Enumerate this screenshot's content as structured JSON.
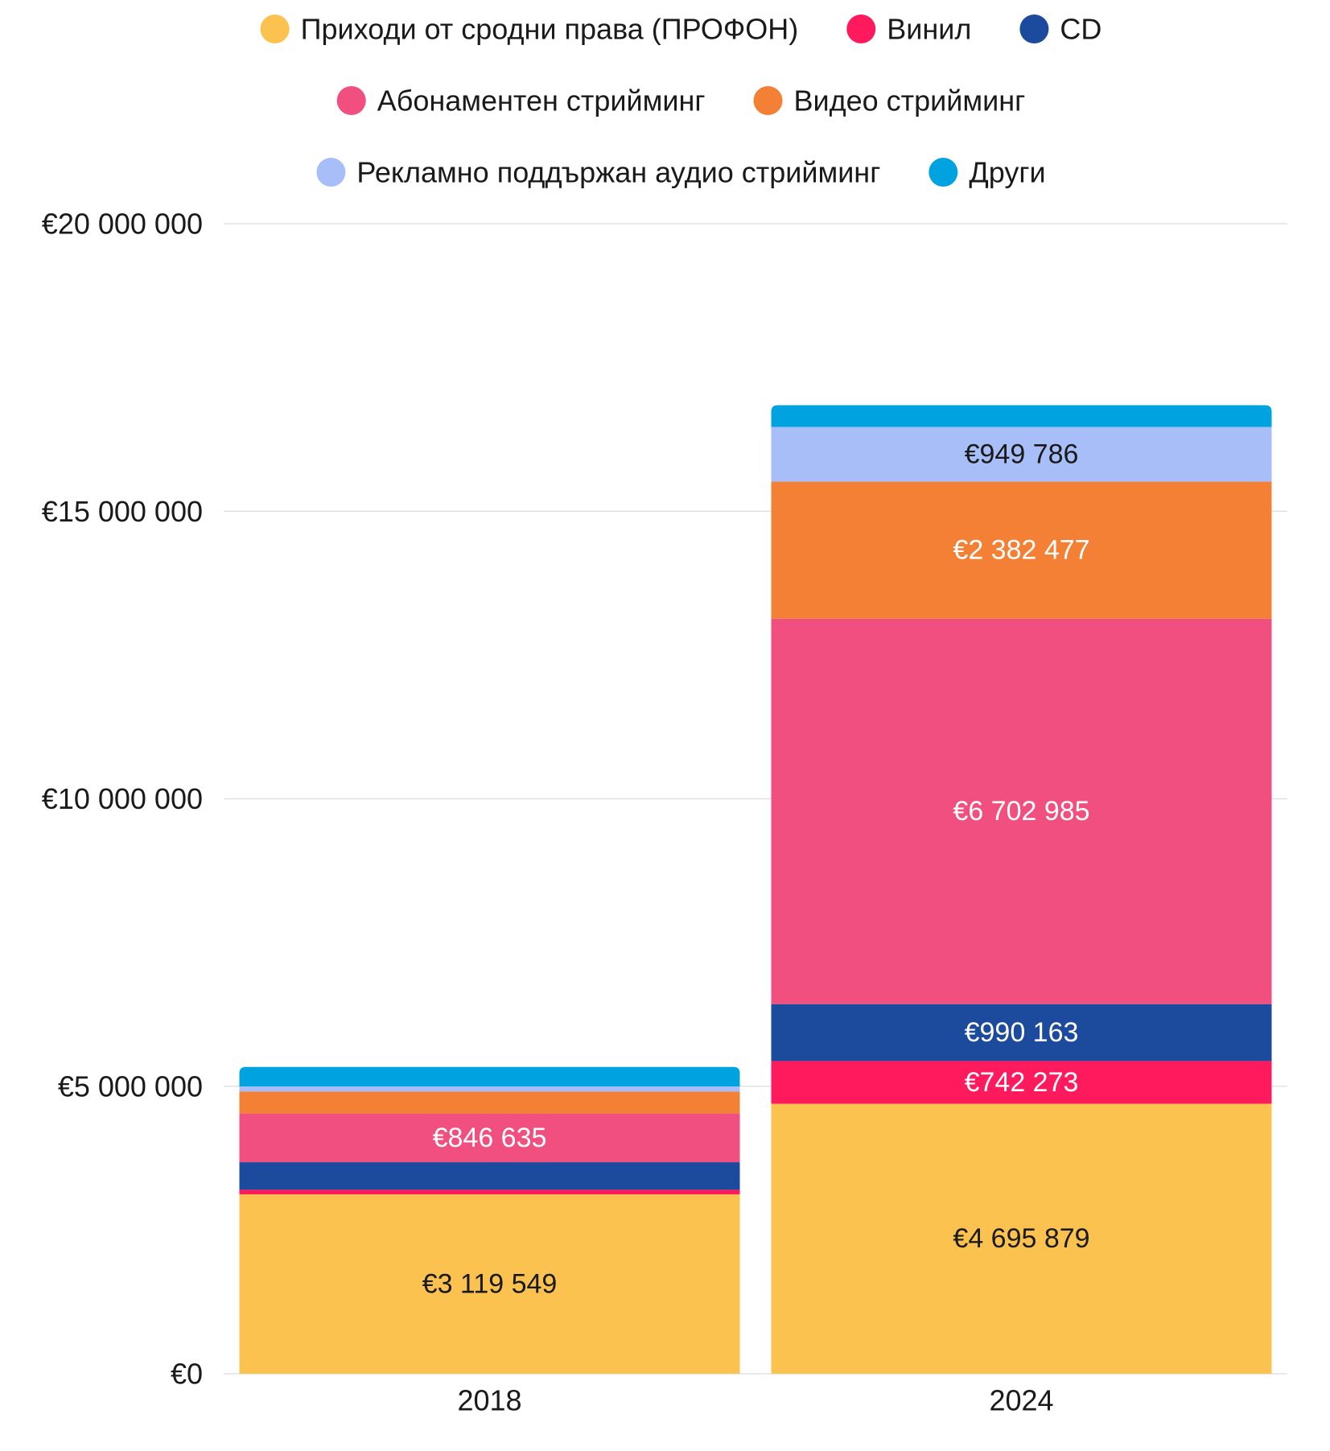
{
  "chart_data": {
    "type": "bar",
    "stacked": true,
    "title": "",
    "xlabel": "",
    "ylabel": "",
    "categories": [
      "2018",
      "2024"
    ],
    "ylim": [
      0,
      20000000
    ],
    "y_ticks": [
      0,
      5000000,
      10000000,
      15000000,
      20000000
    ],
    "y_tick_labels": [
      "€0",
      "€5 000 000",
      "€10 000 000",
      "€15 000 000",
      "€20 000 000"
    ],
    "grid": true,
    "legend_position": "top-center",
    "series": [
      {
        "name": "Приходи от сродни права (ПРОФОН)",
        "color": "#FCC250",
        "values": [
          3119549,
          4695879
        ],
        "labels": [
          "€3 119 549",
          "€4 695 879"
        ],
        "label_colors": [
          "#1a1a1a",
          "#1a1a1a"
        ]
      },
      {
        "name": "Винил",
        "color": "#FF1A5E",
        "values": [
          80000,
          742273
        ],
        "labels": [
          "",
          "€742 273"
        ],
        "label_colors": [
          "#ffffff",
          "#ffffff"
        ]
      },
      {
        "name": "CD",
        "color": "#1C4A9C",
        "values": [
          480000,
          990163
        ],
        "labels": [
          "",
          "€990 163"
        ],
        "label_colors": [
          "#ffffff",
          "#ffffff"
        ]
      },
      {
        "name": "Абонаментен стрийминг",
        "color": "#F04F7F",
        "values": [
          846635,
          6702985
        ],
        "labels": [
          "€846 635",
          "€6 702 985"
        ],
        "label_colors": [
          "#ffffff",
          "#ffffff"
        ]
      },
      {
        "name": "Видео стрийминг",
        "color": "#F48035",
        "values": [
          380000,
          2382477
        ],
        "labels": [
          "",
          "€2 382 477"
        ],
        "label_colors": [
          "#ffffff",
          "#ffffff"
        ]
      },
      {
        "name": "Рекламно поддържан аудио стрийминг",
        "color": "#A8BEF9",
        "values": [
          90000,
          949786
        ],
        "labels": [
          "",
          "€949 786"
        ],
        "label_colors": [
          "#1a1a1a",
          "#1a1a1a"
        ]
      },
      {
        "name": "Други",
        "color": "#00A3E0",
        "values": [
          340000,
          380000
        ],
        "labels": [
          "",
          ""
        ],
        "label_colors": [
          "#ffffff",
          "#ffffff"
        ]
      }
    ]
  }
}
